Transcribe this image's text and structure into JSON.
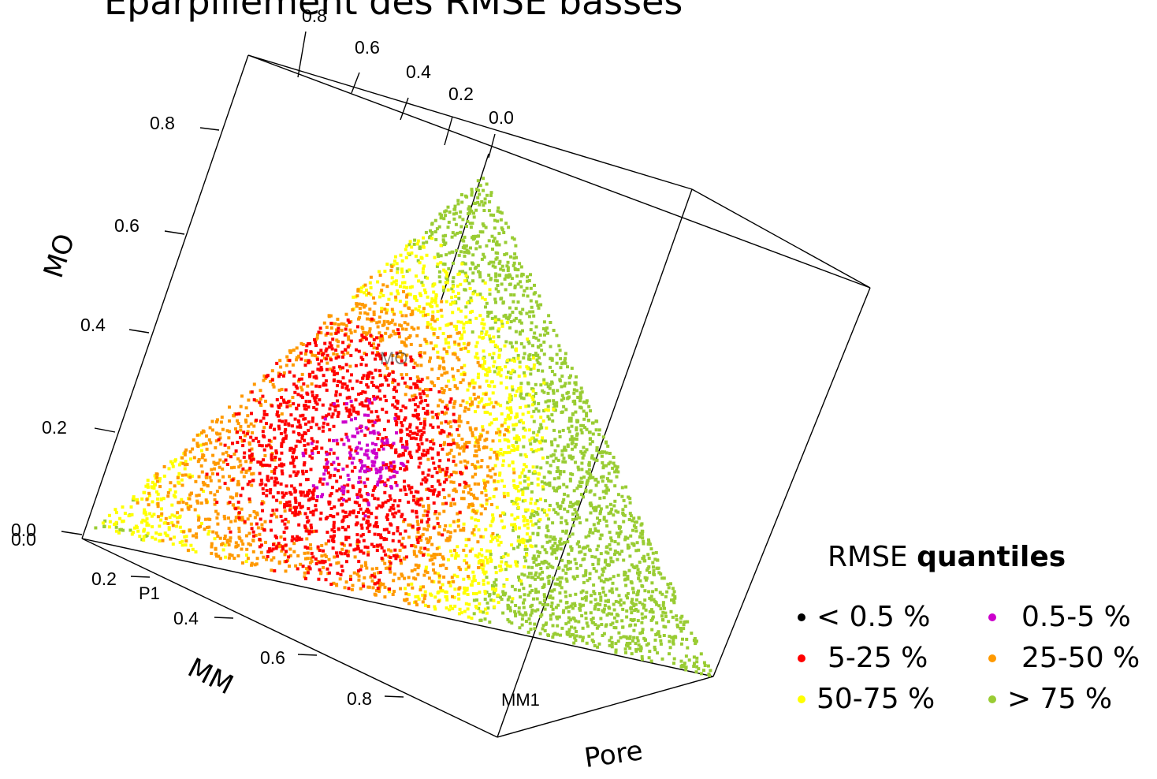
{
  "chart_data": {
    "type": "scatter",
    "title": "Éparpillement des RMSE basses",
    "projection": "3d",
    "axes": {
      "z": {
        "label": "MO",
        "ticks": [
          "0.0",
          "0.2",
          "0.4",
          "0.6",
          "0.8"
        ],
        "range": [
          0,
          0.8
        ]
      },
      "y": {
        "label": "MM",
        "ticks": [
          "0.2",
          "0.4",
          "0.6",
          "0.8"
        ],
        "range": [
          0,
          0.8
        ]
      },
      "x": {
        "label": "Pore",
        "ticks": [
          "0.8",
          "0.6",
          "0.4",
          "0.2",
          "0.0"
        ],
        "range": [
          0,
          0.8
        ]
      },
      "extra_tick": "0.0"
    },
    "vertex_labels": [
      "P1",
      "MM1",
      "MO"
    ],
    "grid": false,
    "series": [
      {
        "name": "< 0.5 %",
        "color": "#000000"
      },
      {
        "name": "0.5-5 %",
        "color": "#cc00cc"
      },
      {
        "name": "5-25 %",
        "color": "#ff0000"
      },
      {
        "name": "25-50 %",
        "color": "#ff9900"
      },
      {
        "name": "50-75 %",
        "color": "#ffff00"
      },
      {
        "name": "> 75 %",
        "color": "#99cc33"
      }
    ]
  },
  "legend": {
    "title_plain": "RMSE",
    "title_bold": "quantiles",
    "placement": "bottom-right"
  }
}
